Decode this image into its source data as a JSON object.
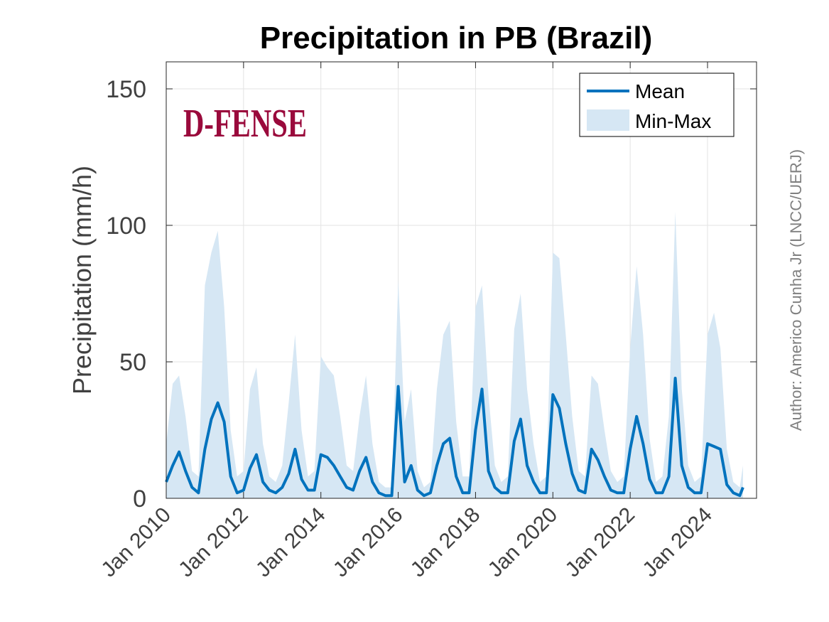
{
  "chart_data": {
    "type": "area",
    "title": "Precipitation in PB (Brazil)",
    "xlabel": "",
    "ylabel": "Precipitation (mm/h)",
    "ylim": [
      0,
      160
    ],
    "xlim": [
      "2010-01",
      "2025-01"
    ],
    "yticks": [
      0,
      50,
      100,
      150
    ],
    "yticklabels": [
      "0",
      "50",
      "100",
      "150"
    ],
    "xtick_years": [
      2010,
      2012,
      2014,
      2016,
      2018,
      2020,
      2022,
      2024
    ],
    "xticklabels": [
      "Jan 2010",
      "Jan 2012",
      "Jan 2014",
      "Jan 2016",
      "Jan 2018",
      "Jan 2020",
      "Jan 2022",
      "Jan 2024"
    ],
    "grid": true,
    "legend_position": "top-right",
    "legend": [
      "Mean",
      "Min-Max"
    ],
    "colors": {
      "mean": "#0072BD",
      "band": "#d6e7f4"
    },
    "series": [
      {
        "name": "Mean",
        "x": [
          "2010-01",
          "2010-03",
          "2010-05",
          "2010-07",
          "2010-09",
          "2010-11",
          "2011-01",
          "2011-03",
          "2011-05",
          "2011-07",
          "2011-09",
          "2011-11",
          "2012-01",
          "2012-03",
          "2012-05",
          "2012-07",
          "2012-09",
          "2012-11",
          "2013-01",
          "2013-03",
          "2013-05",
          "2013-07",
          "2013-09",
          "2013-11",
          "2014-01",
          "2014-03",
          "2014-05",
          "2014-07",
          "2014-09",
          "2014-11",
          "2015-01",
          "2015-03",
          "2015-05",
          "2015-07",
          "2015-09",
          "2015-11",
          "2016-01",
          "2016-03",
          "2016-05",
          "2016-07",
          "2016-09",
          "2016-11",
          "2017-01",
          "2017-03",
          "2017-05",
          "2017-07",
          "2017-09",
          "2017-11",
          "2018-01",
          "2018-03",
          "2018-05",
          "2018-07",
          "2018-09",
          "2018-11",
          "2019-01",
          "2019-03",
          "2019-05",
          "2019-07",
          "2019-09",
          "2019-11",
          "2020-01",
          "2020-03",
          "2020-05",
          "2020-07",
          "2020-09",
          "2020-11",
          "2021-01",
          "2021-03",
          "2021-05",
          "2021-07",
          "2021-09",
          "2021-11",
          "2022-01",
          "2022-03",
          "2022-05",
          "2022-07",
          "2022-09",
          "2022-11",
          "2023-01",
          "2023-03",
          "2023-05",
          "2023-07",
          "2023-09",
          "2023-11",
          "2024-01",
          "2024-03",
          "2024-05",
          "2024-07",
          "2024-09",
          "2024-11",
          "2024-12"
        ],
        "values": [
          6,
          12,
          17,
          10,
          4,
          2,
          18,
          29,
          35,
          28,
          8,
          2,
          3,
          11,
          16,
          6,
          3,
          2,
          4,
          9,
          18,
          7,
          3,
          3,
          16,
          15,
          12,
          8,
          4,
          3,
          10,
          15,
          6,
          2,
          1,
          1,
          41,
          6,
          12,
          3,
          1,
          2,
          12,
          20,
          22,
          8,
          2,
          2,
          25,
          40,
          10,
          4,
          2,
          2,
          21,
          29,
          12,
          6,
          2,
          2,
          38,
          33,
          20,
          9,
          3,
          2,
          18,
          14,
          8,
          3,
          2,
          2,
          18,
          30,
          20,
          7,
          2,
          2,
          8,
          44,
          12,
          4,
          2,
          2,
          20,
          19,
          18,
          5,
          2,
          1,
          4
        ]
      },
      {
        "name": "Min-Max",
        "x": [
          "2010-01",
          "2010-03",
          "2010-05",
          "2010-07",
          "2010-09",
          "2010-11",
          "2011-01",
          "2011-03",
          "2011-05",
          "2011-07",
          "2011-09",
          "2011-11",
          "2012-01",
          "2012-03",
          "2012-05",
          "2012-07",
          "2012-09",
          "2012-11",
          "2013-01",
          "2013-03",
          "2013-05",
          "2013-07",
          "2013-09",
          "2013-11",
          "2014-01",
          "2014-03",
          "2014-05",
          "2014-07",
          "2014-09",
          "2014-11",
          "2015-01",
          "2015-03",
          "2015-05",
          "2015-07",
          "2015-09",
          "2015-11",
          "2016-01",
          "2016-03",
          "2016-05",
          "2016-07",
          "2016-09",
          "2016-11",
          "2017-01",
          "2017-03",
          "2017-05",
          "2017-07",
          "2017-09",
          "2017-11",
          "2018-01",
          "2018-03",
          "2018-05",
          "2018-07",
          "2018-09",
          "2018-11",
          "2019-01",
          "2019-03",
          "2019-05",
          "2019-07",
          "2019-09",
          "2019-11",
          "2020-01",
          "2020-03",
          "2020-05",
          "2020-07",
          "2020-09",
          "2020-11",
          "2021-01",
          "2021-03",
          "2021-05",
          "2021-07",
          "2021-09",
          "2021-11",
          "2022-01",
          "2022-03",
          "2022-05",
          "2022-07",
          "2022-09",
          "2022-11",
          "2023-01",
          "2023-03",
          "2023-05",
          "2023-07",
          "2023-09",
          "2023-11",
          "2024-01",
          "2024-03",
          "2024-05",
          "2024-07",
          "2024-09",
          "2024-11",
          "2024-12"
        ],
        "min": [
          0,
          0,
          0,
          0,
          0,
          0,
          0,
          0,
          0,
          0,
          0,
          0,
          0,
          0,
          0,
          0,
          0,
          0,
          0,
          0,
          0,
          0,
          0,
          0,
          0,
          0,
          0,
          0,
          0,
          0,
          0,
          0,
          0,
          0,
          0,
          0,
          0,
          0,
          0,
          0,
          0,
          0,
          0,
          0,
          0,
          0,
          0,
          0,
          0,
          0,
          0,
          0,
          0,
          0,
          0,
          0,
          0,
          0,
          0,
          0,
          0,
          0,
          0,
          0,
          0,
          0,
          0,
          0,
          0,
          0,
          0,
          0,
          0,
          0,
          0,
          0,
          0,
          0,
          0,
          0,
          0,
          0,
          0,
          0,
          0,
          0,
          0,
          0,
          0,
          0,
          0
        ],
        "max": [
          20,
          42,
          45,
          30,
          10,
          8,
          78,
          90,
          98,
          70,
          25,
          8,
          10,
          40,
          48,
          20,
          8,
          6,
          12,
          35,
          60,
          25,
          8,
          10,
          52,
          48,
          45,
          30,
          12,
          10,
          30,
          45,
          20,
          6,
          4,
          4,
          80,
          28,
          40,
          10,
          4,
          6,
          40,
          60,
          65,
          28,
          8,
          8,
          70,
          78,
          38,
          12,
          6,
          8,
          62,
          75,
          40,
          20,
          6,
          8,
          90,
          88,
          60,
          30,
          10,
          8,
          45,
          42,
          25,
          10,
          6,
          8,
          55,
          85,
          60,
          22,
          6,
          8,
          30,
          105,
          40,
          12,
          6,
          8,
          60,
          68,
          55,
          18,
          6,
          4,
          12
        ]
      }
    ]
  },
  "watermark": {
    "logo_text": "D-FENSE"
  },
  "author_credit": "Author: Americo Cunha Jr (LNCC/UERJ)"
}
